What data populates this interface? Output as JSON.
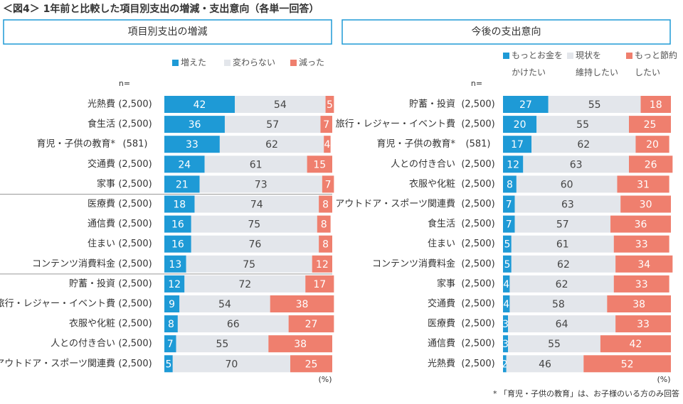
{
  "title": "＜図4＞ 1年前と比較した項目別支出の増減・支出意向（各単一回答）",
  "footnote": "* 「育児・子供の教育」は、お子様のいる方のみ回答",
  "chart_data": [
    {
      "type": "stacked-bar",
      "title": "項目別支出の増減",
      "n_label": "n=",
      "unit_label": "(%)",
      "xlim": [
        0,
        100
      ],
      "categories": [
        "光熱費",
        "食生活",
        "育児・子供の教育*",
        "交通費",
        "家事",
        "医療費",
        "通信費",
        "住まい",
        "コンテンツ消費料金",
        "貯蓄・投資",
        "旅行・レジャー・イベント費",
        "衣服や化粧",
        "人との付き合い",
        "アウトドア・スポーツ関連費"
      ],
      "n": [
        "(2,500)",
        "(2,500)",
        "(581)",
        "(2,500)",
        "(2,500)",
        "(2,500)",
        "(2,500)",
        "(2,500)",
        "(2,500)",
        "(2,500)",
        "(2,500)",
        "(2,500)",
        "(2,500)",
        "(2,500)"
      ],
      "series": [
        {
          "name": "増えた",
          "color": "#1e9ad6",
          "values": [
            42,
            36,
            33,
            24,
            21,
            18,
            16,
            16,
            13,
            12,
            9,
            8,
            7,
            5
          ]
        },
        {
          "name": "変わらない",
          "color": "#e3e6eb",
          "values": [
            54,
            57,
            62,
            61,
            73,
            74,
            75,
            76,
            75,
            72,
            54,
            66,
            55,
            70
          ]
        },
        {
          "name": "減った",
          "color": "#ef7f6e",
          "values": [
            5,
            7,
            4,
            15,
            7,
            8,
            8,
            8,
            12,
            17,
            38,
            27,
            38,
            25
          ]
        }
      ]
    },
    {
      "type": "stacked-bar",
      "title": "今後の支出意向",
      "n_label": "n=",
      "unit_label": "(%)",
      "xlim": [
        0,
        100
      ],
      "categories": [
        "貯蓄・投資",
        "旅行・レジャー・イベント費",
        "育児・子供の教育*",
        "人との付き合い",
        "衣服や化粧",
        "アウトドア・スポーツ関連費",
        "食生活",
        "住まい",
        "コンテンツ消費料金",
        "家事",
        "交通費",
        "医療費",
        "通信費",
        "光熱費"
      ],
      "n": [
        "(2,500)",
        "(2,500)",
        "(581)",
        "(2,500)",
        "(2,500)",
        "(2,500)",
        "(2,500)",
        "(2,500)",
        "(2,500)",
        "(2,500)",
        "(2,500)",
        "(2,500)",
        "(2,500)",
        "(2,500)"
      ],
      "series": [
        {
          "name": "もっとお金を\nかけたい",
          "color": "#1e9ad6",
          "values": [
            27,
            20,
            17,
            12,
            8,
            7,
            7,
            5,
            5,
            4,
            4,
            3,
            3,
            2
          ]
        },
        {
          "name": "現状を\n維持したい",
          "color": "#e3e6eb",
          "values": [
            55,
            55,
            62,
            63,
            60,
            63,
            57,
            61,
            62,
            62,
            58,
            64,
            55,
            46
          ]
        },
        {
          "name": "もっと節約\nしたい",
          "color": "#ef7f6e",
          "values": [
            18,
            25,
            20,
            26,
            31,
            30,
            36,
            33,
            34,
            33,
            38,
            33,
            42,
            52
          ]
        }
      ]
    }
  ]
}
